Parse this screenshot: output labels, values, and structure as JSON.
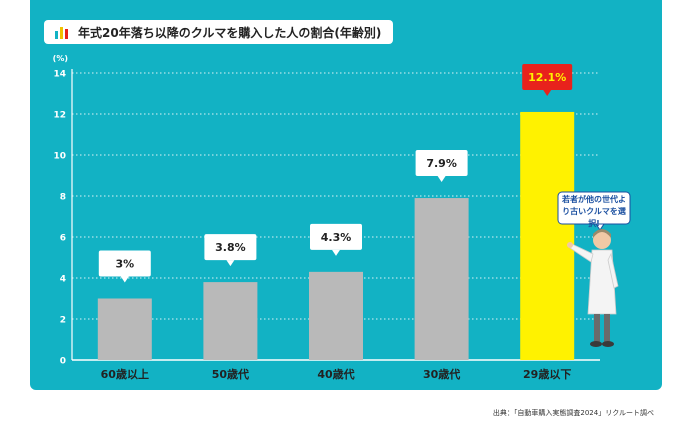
{
  "title": "年式20年落ち以降のクルマを購入した人の割合(年齢別)",
  "speech_bubble": "若者が他の世代より古いクルマを選択!",
  "source": "出典：「自動車購入実態調査2024」リクルート調べ",
  "colors": {
    "panel": "#12b2c4",
    "bar": "#b9b9b9",
    "highlight_bar": "#fff200",
    "callout": "#ffffff",
    "highlight_callout": "#e8221c",
    "highlight_text": "#fff200",
    "axis_text": "#ffffff",
    "category_text": "#222222"
  },
  "chart_data": {
    "type": "bar",
    "title": "年式20年落ち以降のクルマを購入した人の割合(年齢別)",
    "ylabel": "(%)",
    "xlabel": "",
    "ylim": [
      0,
      14
    ],
    "yticks": [
      0,
      2,
      4,
      6,
      8,
      10,
      12,
      14
    ],
    "grid": true,
    "categories": [
      "60歳以上",
      "50歳代",
      "40歳代",
      "30歳代",
      "29歳以下"
    ],
    "values": [
      3,
      3.8,
      4.3,
      7.9,
      12.1
    ],
    "labels": [
      "3%",
      "3.8%",
      "4.3%",
      "7.9%",
      "12.1%"
    ],
    "highlight_index": 4
  }
}
